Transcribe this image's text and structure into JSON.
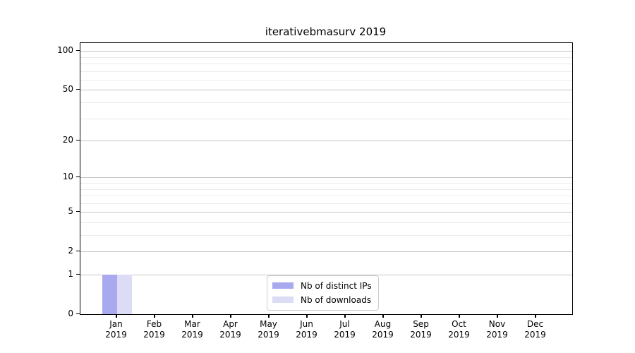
{
  "title": "iterativebmasurv 2019",
  "chart_data": {
    "type": "bar",
    "title": "iterativebmasurv 2019",
    "categories": [
      [
        "Jan",
        "2019"
      ],
      [
        "Feb",
        "2019"
      ],
      [
        "Mar",
        "2019"
      ],
      [
        "Apr",
        "2019"
      ],
      [
        "May",
        "2019"
      ],
      [
        "Jun",
        "2019"
      ],
      [
        "Jul",
        "2019"
      ],
      [
        "Aug",
        "2019"
      ],
      [
        "Sep",
        "2019"
      ],
      [
        "Oct",
        "2019"
      ],
      [
        "Nov",
        "2019"
      ],
      [
        "Dec",
        "2019"
      ]
    ],
    "series": [
      {
        "name": "Nb of distinct IPs",
        "color": "#a9a9f0",
        "values": [
          1,
          0,
          0,
          0,
          0,
          0,
          0,
          0,
          0,
          0,
          0,
          0
        ]
      },
      {
        "name": "Nb of downloads",
        "color": "#dcdcf7",
        "values": [
          1,
          0,
          0,
          0,
          0,
          0,
          0,
          0,
          0,
          0,
          0,
          0
        ]
      }
    ],
    "y_axis": {
      "ticks": [
        0,
        1,
        2,
        5,
        10,
        20,
        50,
        100
      ],
      "minor_gridlines": [
        3,
        4,
        6,
        7,
        8,
        9,
        30,
        40,
        60,
        70,
        80,
        90
      ],
      "scale": "log1p",
      "max": 115
    },
    "xlabel": "",
    "ylabel": "",
    "grid": "both",
    "legend_position": "lower center",
    "colors": {
      "major_grid": "#c4c4c4",
      "minor_grid": "#ebebeb",
      "spine": "#000000",
      "background": "#ffffff"
    }
  }
}
